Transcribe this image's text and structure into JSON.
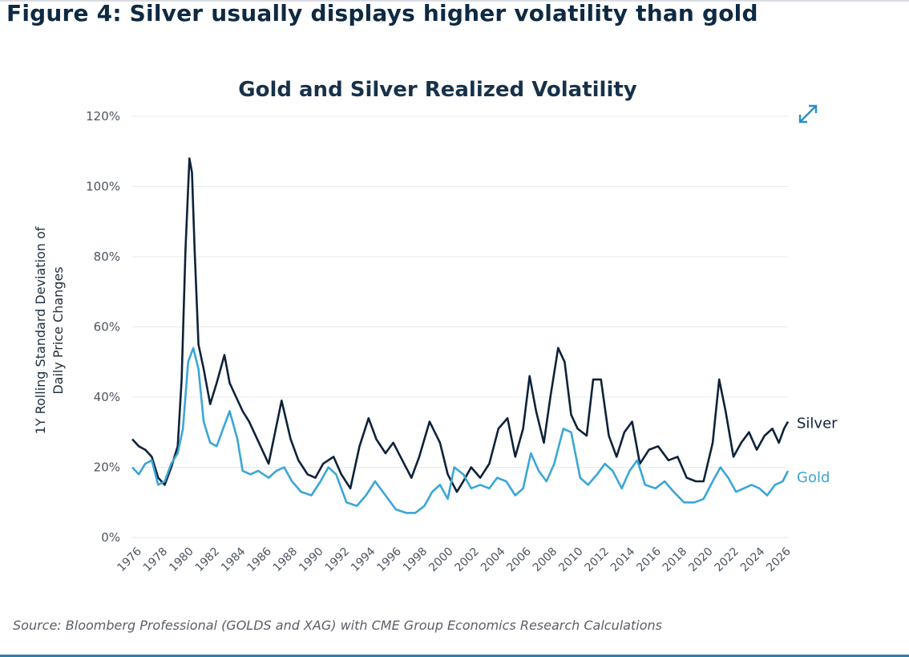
{
  "page": {
    "heading": "Figure 4: Silver usually displays higher volatility than gold",
    "source": "Source: Bloomberg Professional (GOLDS and XAG) with CME Group Economics Research Calculations",
    "expand_icon": "expand-arrows-icon"
  },
  "colors": {
    "silver": "#0e2239",
    "gold": "#3aa6d6",
    "title": "#17314a"
  },
  "chart_data": {
    "type": "line",
    "title": "Gold and Silver Realized Volatility",
    "ylabel": "1Y Rolling Standard Deviation of Daily Price Changes",
    "xlabel": "",
    "xlim": [
      1975.5,
      2026
    ],
    "ylim": [
      0,
      120
    ],
    "yticks": [
      0,
      20,
      40,
      60,
      80,
      100,
      120
    ],
    "ytick_labels": [
      "0%",
      "20%",
      "40%",
      "60%",
      "80%",
      "100%",
      "120%"
    ],
    "xticks": [
      1976,
      1978,
      1980,
      1982,
      1984,
      1986,
      1988,
      1990,
      1992,
      1994,
      1996,
      1998,
      2000,
      2002,
      2004,
      2006,
      2008,
      2010,
      2012,
      2014,
      2016,
      2018,
      2020,
      2022,
      2024,
      2026
    ],
    "grid": "horizontal",
    "series": [
      {
        "name": "Silver",
        "color": "#0e2239",
        "x": [
          1975.5,
          1976,
          1976.5,
          1977,
          1977.5,
          1978,
          1978.5,
          1979,
          1979.3,
          1979.6,
          1979.9,
          1980.1,
          1980.3,
          1980.6,
          1981,
          1981.5,
          1982,
          1982.6,
          1983,
          1983.5,
          1984,
          1984.5,
          1985,
          1985.5,
          1986,
          1986.5,
          1987,
          1987.7,
          1988.3,
          1989,
          1989.6,
          1990.2,
          1991,
          1991.6,
          1992.3,
          1993,
          1993.7,
          1994.3,
          1995,
          1995.6,
          1996.3,
          1997,
          1997.6,
          1998.4,
          1999.2,
          1999.8,
          2000.5,
          2001,
          2001.6,
          2002.3,
          2003,
          2003.7,
          2004.4,
          2005,
          2005.6,
          2006.1,
          2006.6,
          2007.2,
          2007.7,
          2008.3,
          2008.8,
          2009.3,
          2009.8,
          2010.5,
          2011,
          2011.6,
          2012.2,
          2012.8,
          2013.4,
          2014,
          2014.6,
          2015.3,
          2016,
          2016.8,
          2017.5,
          2018.2,
          2018.9,
          2019.5,
          2020.2,
          2020.7,
          2021.2,
          2021.8,
          2022.4,
          2023,
          2023.6,
          2024.2,
          2024.8,
          2025.3,
          2025.7,
          2026
        ],
        "y": [
          28,
          26,
          25,
          23,
          17,
          15,
          20,
          26,
          45,
          82,
          108,
          104,
          82,
          55,
          48,
          38,
          44,
          52,
          44,
          40,
          36,
          33,
          29,
          25,
          21,
          30,
          39,
          28,
          22,
          18,
          17,
          21,
          23,
          18,
          14,
          26,
          34,
          28,
          24,
          27,
          22,
          17,
          23,
          33,
          27,
          18,
          13,
          16,
          20,
          17,
          21,
          31,
          34,
          23,
          31,
          46,
          36,
          27,
          40,
          54,
          50,
          35,
          31,
          29,
          45,
          45,
          29,
          23,
          30,
          33,
          21,
          25,
          26,
          22,
          23,
          17,
          16,
          16,
          27,
          45,
          36,
          23,
          27,
          30,
          25,
          29,
          31,
          27,
          31,
          33
        ]
      },
      {
        "name": "Gold",
        "color": "#3aa6d6",
        "x": [
          1975.5,
          1976,
          1976.5,
          1977,
          1977.5,
          1978,
          1978.5,
          1979,
          1979.4,
          1979.8,
          1980.2,
          1980.6,
          1981,
          1981.5,
          1982,
          1982.6,
          1983,
          1983.6,
          1984,
          1984.6,
          1985.2,
          1986,
          1986.6,
          1987.2,
          1987.8,
          1988.5,
          1989.3,
          1990,
          1990.6,
          1991.2,
          1992,
          1992.8,
          1993.5,
          1994.2,
          1995,
          1995.8,
          1996.6,
          1997.3,
          1998,
          1998.6,
          1999.2,
          1999.8,
          2000.3,
          2001,
          2001.6,
          2002.3,
          2003,
          2003.6,
          2004.3,
          2005,
          2005.6,
          2006.2,
          2006.8,
          2007.4,
          2008,
          2008.7,
          2009.3,
          2010,
          2010.6,
          2011.3,
          2011.9,
          2012.5,
          2013.2,
          2013.8,
          2014.4,
          2015,
          2015.8,
          2016.5,
          2017.2,
          2018,
          2018.8,
          2019.5,
          2020.2,
          2020.8,
          2021.4,
          2022,
          2022.6,
          2023.2,
          2023.8,
          2024.4,
          2025,
          2025.6,
          2026
        ],
        "y": [
          20,
          18,
          21,
          22,
          15,
          16,
          21,
          24,
          31,
          50,
          54,
          48,
          33,
          27,
          26,
          32,
          36,
          28,
          19,
          18,
          19,
          17,
          19,
          20,
          16,
          13,
          12,
          16,
          20,
          18,
          10,
          9,
          12,
          16,
          12,
          8,
          7,
          7,
          9,
          13,
          15,
          11,
          20,
          18,
          14,
          15,
          14,
          17,
          16,
          12,
          14,
          24,
          19,
          16,
          21,
          31,
          30,
          17,
          15,
          18,
          21,
          19,
          14,
          19,
          22,
          15,
          14,
          16,
          13,
          10,
          10,
          11,
          16,
          20,
          17,
          13,
          14,
          15,
          14,
          12,
          15,
          16,
          19
        ]
      }
    ]
  }
}
